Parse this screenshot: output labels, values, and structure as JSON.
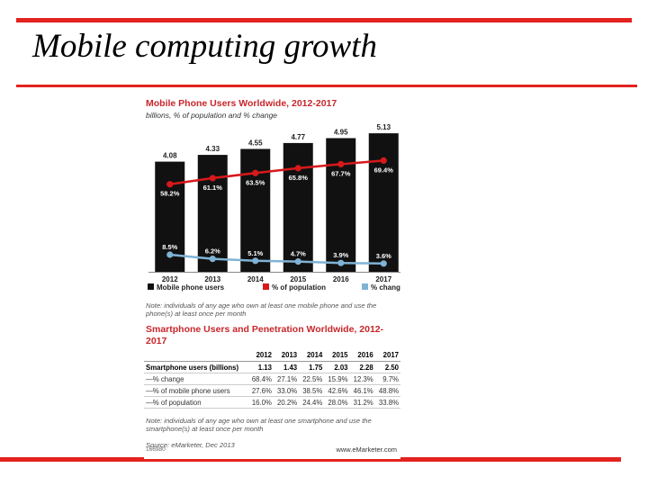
{
  "slide": {
    "title": "Mobile computing growth",
    "accent_color": "#e3231f"
  },
  "chart_data": {
    "type": "bar",
    "title": "Mobile Phone Users Worldwide, 2012-2017",
    "subtitle": "billions, % of population and % change",
    "categories": [
      "2012",
      "2013",
      "2014",
      "2015",
      "2016",
      "2017"
    ],
    "series": [
      {
        "name": "Mobile phone users",
        "kind": "bar",
        "color": "#111111",
        "values": [
          4.08,
          4.33,
          4.55,
          4.77,
          4.95,
          5.13
        ],
        "labels": [
          "4.08",
          "4.33",
          "4.55",
          "4.77",
          "4.95",
          "5.13"
        ]
      },
      {
        "name": "% of population",
        "kind": "line",
        "color": "#d7191c",
        "values": [
          58.2,
          61.1,
          63.5,
          65.8,
          67.7,
          69.4
        ],
        "labels": [
          "58.2%",
          "61.1%",
          "63.5%",
          "65.8%",
          "67.7%",
          "69.4%"
        ]
      },
      {
        "name": "% change",
        "kind": "line",
        "color": "#7fb3d5",
        "values": [
          8.5,
          6.2,
          5.1,
          4.7,
          3.9,
          3.6
        ],
        "labels": [
          "8.5%",
          "6.2%",
          "5.1%",
          "4.7%",
          "3.9%",
          "3.6%"
        ]
      }
    ],
    "note": "Note: individuals of any age who own at least one mobile phone and use the phone(s) at least once per month"
  },
  "table": {
    "title": "Smartphone Users and Penetration Worldwide, 2012-2017",
    "columns": [
      "2012",
      "2013",
      "2014",
      "2015",
      "2016",
      "2017"
    ],
    "rows": [
      {
        "label": "Smartphone users (billions)",
        "values": [
          "1.13",
          "1.43",
          "1.75",
          "2.03",
          "2.28",
          "2.50"
        ]
      },
      {
        "label": "—% change",
        "values": [
          "68.4%",
          "27.1%",
          "22.5%",
          "15.9%",
          "12.3%",
          "9.7%"
        ]
      },
      {
        "label": "—% of mobile phone users",
        "values": [
          "27.6%",
          "33.0%",
          "38.5%",
          "42.6%",
          "46.1%",
          "48.8%"
        ]
      },
      {
        "label": "—% of population",
        "values": [
          "16.0%",
          "20.2%",
          "24.4%",
          "28.0%",
          "31.2%",
          "33.8%"
        ]
      }
    ],
    "note": "Note: individuals of any age who own at least one smartphone and use the smartphone(s) at least once per month",
    "source": "Source: eMarketer, Dec 2013"
  },
  "footer": {
    "id": "166980",
    "brand": "www.eMarketer.com"
  }
}
